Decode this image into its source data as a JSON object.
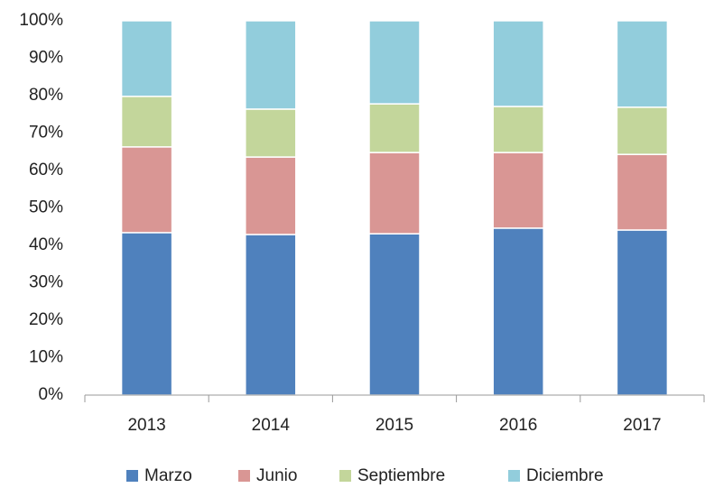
{
  "chart_data": {
    "type": "stacked_bar_100",
    "categories": [
      "2013",
      "2014",
      "2015",
      "2016",
      "2017"
    ],
    "series": [
      {
        "name": "Marzo",
        "color": "#4f81bd",
        "values": [
          43.4,
          42.9,
          43.1,
          44.6,
          44.1
        ]
      },
      {
        "name": "Junio",
        "color": "#d99694",
        "values": [
          22.9,
          20.7,
          21.7,
          20.2,
          20.2
        ]
      },
      {
        "name": "Septiembre",
        "color": "#c3d69b",
        "values": [
          13.5,
          12.8,
          13.0,
          12.3,
          12.6
        ]
      },
      {
        "name": "Diciembre",
        "color": "#92cddc",
        "values": [
          20.2,
          23.6,
          22.2,
          22.9,
          23.1
        ]
      }
    ],
    "ylim": [
      0,
      100
    ],
    "yticks": [
      {
        "value": 0,
        "label": "0%"
      },
      {
        "value": 10,
        "label": "10%"
      },
      {
        "value": 20,
        "label": "20%"
      },
      {
        "value": 30,
        "label": "30%"
      },
      {
        "value": 40,
        "label": "40%"
      },
      {
        "value": 50,
        "label": "50%"
      },
      {
        "value": 60,
        "label": "60%"
      },
      {
        "value": 70,
        "label": "70%"
      },
      {
        "value": 80,
        "label": "80%"
      },
      {
        "value": 90,
        "label": "90%"
      },
      {
        "value": 100,
        "label": "100%"
      }
    ],
    "grid": false,
    "legend": "bottom"
  }
}
